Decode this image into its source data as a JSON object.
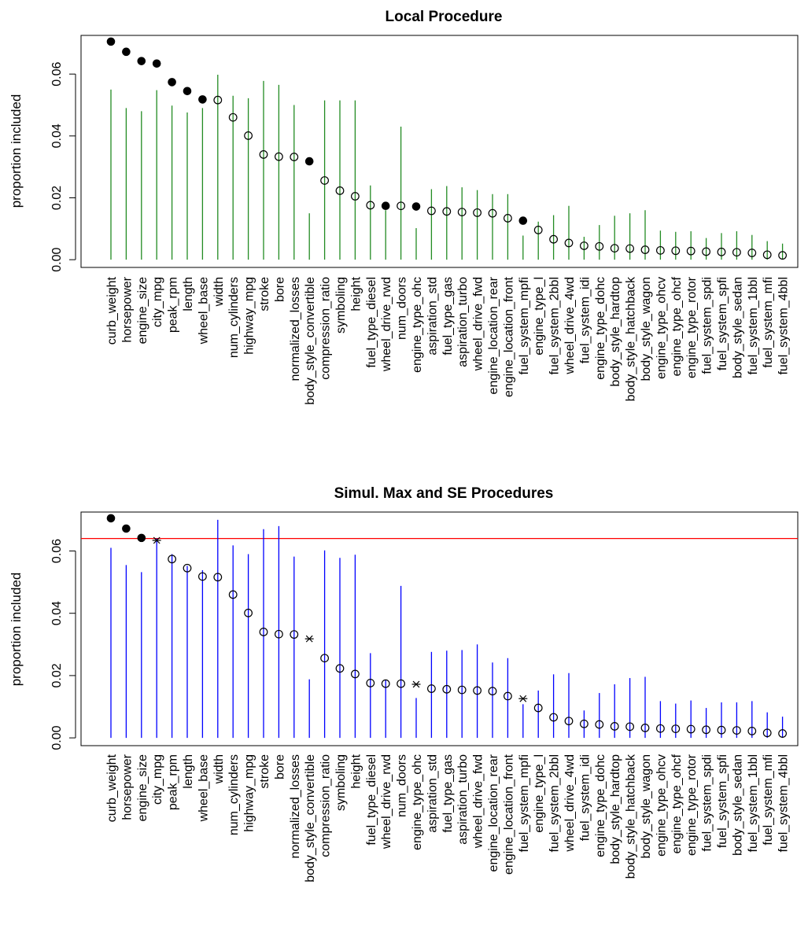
{
  "chart_data": [
    {
      "type": "scatter",
      "title": "Local Procedure",
      "xlabel": "",
      "ylabel": "proportion included",
      "ylim": [
        -0.0025,
        0.0725
      ],
      "yticks": [
        "0.00",
        "0.02",
        "0.04",
        "0.06"
      ],
      "interval_color": "#228B22",
      "categories": [
        "curb_weight",
        "horsepower",
        "engine_size",
        "city_mpg",
        "peak_rpm",
        "length",
        "wheel_base",
        "width",
        "num_cylinders",
        "highway_mpg",
        "stroke",
        "bore",
        "normalized_losses",
        "body_style_convertible",
        "compression_ratio",
        "symboling",
        "height",
        "fuel_type_diesel",
        "wheel_drive_rwd",
        "num_doors",
        "engine_type_ohc",
        "aspiration_std",
        "fuel_type_gas",
        "aspiration_turbo",
        "wheel_drive_fwd",
        "engine_location_rear",
        "engine_location_front",
        "fuel_system_mpfi",
        "engine_type_l",
        "fuel_system_2bbl",
        "wheel_drive_4wd",
        "fuel_system_idi",
        "engine_type_dohc",
        "body_style_hardtop",
        "body_style_hatchback",
        "body_style_wagon",
        "engine_type_ohcv",
        "engine_type_ohcf",
        "engine_type_rotor",
        "fuel_system_spdi",
        "fuel_system_spfi",
        "body_style_sedan",
        "fuel_system_1bbl",
        "fuel_system_mfi",
        "fuel_system_4bbl"
      ],
      "values": [
        0.0705,
        0.0672,
        0.0642,
        0.0634,
        0.0574,
        0.0545,
        0.0518,
        0.0516,
        0.046,
        0.0401,
        0.034,
        0.0333,
        0.0332,
        0.0318,
        0.0256,
        0.0223,
        0.0205,
        0.0176,
        0.0174,
        0.0174,
        0.0172,
        0.0158,
        0.0156,
        0.0154,
        0.0152,
        0.015,
        0.0134,
        0.0126,
        0.0096,
        0.0066,
        0.0054,
        0.0045,
        0.0043,
        0.0037,
        0.0036,
        0.0032,
        0.003,
        0.0029,
        0.0028,
        0.0026,
        0.0025,
        0.0024,
        0.0022,
        0.0016,
        0.0014
      ],
      "interval_upper": [
        0.055,
        0.049,
        0.048,
        0.0548,
        0.0498,
        0.0476,
        0.049,
        0.0598,
        0.053,
        0.0522,
        0.0578,
        0.0565,
        0.05,
        0.015,
        0.0515,
        0.0515,
        0.0515,
        0.024,
        0.016,
        0.043,
        0.0102,
        0.0228,
        0.0238,
        0.0234,
        0.0225,
        0.0212,
        0.0212,
        0.0078,
        0.0123,
        0.0144,
        0.0174,
        0.0074,
        0.0112,
        0.0142,
        0.015,
        0.016,
        0.0094,
        0.009,
        0.0092,
        0.007,
        0.0086,
        0.0092,
        0.008,
        0.006,
        0.0052
      ],
      "marker": [
        "filled",
        "filled",
        "filled",
        "filled",
        "filled",
        "filled",
        "filled",
        "open",
        "open",
        "open",
        "open",
        "open",
        "open",
        "filled",
        "open",
        "open",
        "open",
        "open",
        "filled",
        "open",
        "filled",
        "open",
        "open",
        "open",
        "open",
        "open",
        "open",
        "filled",
        "open",
        "open",
        "open",
        "open",
        "open",
        "open",
        "open",
        "open",
        "open",
        "open",
        "open",
        "open",
        "open",
        "open",
        "open",
        "open",
        "open"
      ]
    },
    {
      "type": "scatter",
      "title": "Simul. Max and SE Procedures",
      "xlabel": "",
      "ylabel": "proportion included",
      "ylim": [
        -0.0025,
        0.0725
      ],
      "yticks": [
        "0.00",
        "0.02",
        "0.04",
        "0.06"
      ],
      "interval_color": "#0000FF",
      "threshold": 0.064,
      "threshold_color": "#FF0000",
      "categories": [
        "curb_weight",
        "horsepower",
        "engine_size",
        "city_mpg",
        "peak_rpm",
        "length",
        "wheel_base",
        "width",
        "num_cylinders",
        "highway_mpg",
        "stroke",
        "bore",
        "normalized_losses",
        "body_style_convertible",
        "compression_ratio",
        "symboling",
        "height",
        "fuel_type_diesel",
        "wheel_drive_rwd",
        "num_doors",
        "engine_type_ohc",
        "aspiration_std",
        "fuel_type_gas",
        "aspiration_turbo",
        "wheel_drive_fwd",
        "engine_location_rear",
        "engine_location_front",
        "fuel_system_mpfi",
        "engine_type_l",
        "fuel_system_2bbl",
        "wheel_drive_4wd",
        "fuel_system_idi",
        "engine_type_dohc",
        "body_style_hardtop",
        "body_style_hatchback",
        "body_style_wagon",
        "engine_type_ohcv",
        "engine_type_ohcf",
        "engine_type_rotor",
        "fuel_system_spdi",
        "fuel_system_spfi",
        "body_style_sedan",
        "fuel_system_1bbl",
        "fuel_system_mfi",
        "fuel_system_4bbl"
      ],
      "values": [
        0.0705,
        0.0672,
        0.0642,
        0.0634,
        0.0574,
        0.0545,
        0.0518,
        0.0516,
        0.046,
        0.0401,
        0.034,
        0.0333,
        0.0332,
        0.0318,
        0.0256,
        0.0223,
        0.0205,
        0.0176,
        0.0174,
        0.0174,
        0.0172,
        0.0158,
        0.0156,
        0.0154,
        0.0152,
        0.015,
        0.0134,
        0.0126,
        0.0096,
        0.0066,
        0.0054,
        0.0045,
        0.0043,
        0.0037,
        0.0036,
        0.0032,
        0.003,
        0.0029,
        0.0028,
        0.0026,
        0.0025,
        0.0024,
        0.0022,
        0.0016,
        0.0014
      ],
      "interval_upper": [
        0.061,
        0.0555,
        0.0532,
        0.064,
        0.059,
        0.0552,
        0.0538,
        0.07,
        0.0618,
        0.059,
        0.067,
        0.068,
        0.0582,
        0.0188,
        0.0602,
        0.0578,
        0.0588,
        0.0272,
        0.0186,
        0.0488,
        0.0128,
        0.0276,
        0.028,
        0.0282,
        0.03,
        0.0242,
        0.0256,
        0.0108,
        0.0152,
        0.0204,
        0.0208,
        0.0088,
        0.0144,
        0.0172,
        0.0192,
        0.0196,
        0.0118,
        0.011,
        0.012,
        0.0096,
        0.0114,
        0.0114,
        0.0118,
        0.0082,
        0.0068
      ],
      "marker": [
        "filled",
        "filled",
        "filled",
        "star",
        "open",
        "open",
        "open",
        "open",
        "open",
        "open",
        "open",
        "open",
        "open",
        "star",
        "open",
        "open",
        "open",
        "open",
        "open",
        "open",
        "star",
        "open",
        "open",
        "open",
        "open",
        "open",
        "open",
        "star",
        "open",
        "open",
        "open",
        "open",
        "open",
        "open",
        "open",
        "open",
        "open",
        "open",
        "open",
        "open",
        "open",
        "open",
        "open",
        "open",
        "open"
      ]
    }
  ]
}
